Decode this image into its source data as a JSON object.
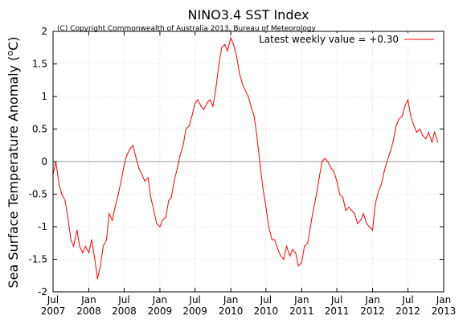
{
  "title": "NINO3.4 SST Index",
  "copyright": "(C) Copyright Commonwealth of Australia 2013, Bureau of Meteorology",
  "legend": {
    "label": "Latest weekly value = +0.30",
    "position": "top-right"
  },
  "ylabel": {
    "main": "Sea Surface Temperature Anomaly (",
    "sup": "o",
    "unit": "C)"
  },
  "colors": {
    "series": "#ff0000",
    "axis": "#000000",
    "grid": "#bdbdbd"
  },
  "chart_data": {
    "type": "line",
    "title": "NINO3.4 SST Index",
    "xlabel": "",
    "ylabel": "Sea Surface Temperature Anomaly (oC)",
    "ylim": [
      -2,
      2
    ],
    "yticks": [
      -2,
      -1.5,
      -1,
      -0.5,
      0,
      0.5,
      1,
      1.5,
      2
    ],
    "ytick_labels": [
      "-2",
      "-1.5",
      "-1",
      "-0.5",
      "0",
      "0.5",
      "1",
      "1.5",
      "2"
    ],
    "xlim": [
      "2007-07",
      "2013-01"
    ],
    "xticks": [
      {
        "pos": "2007-07",
        "line1": "Jul",
        "line2": "2007"
      },
      {
        "pos": "2008-01",
        "line1": "Jan",
        "line2": "2008"
      },
      {
        "pos": "2008-07",
        "line1": "Jul",
        "line2": "2008"
      },
      {
        "pos": "2009-01",
        "line1": "Jan",
        "line2": "2009"
      },
      {
        "pos": "2009-07",
        "line1": "Jul",
        "line2": "2009"
      },
      {
        "pos": "2010-01",
        "line1": "Jan",
        "line2": "2010"
      },
      {
        "pos": "2010-07",
        "line1": "Jul",
        "line2": "2010"
      },
      {
        "pos": "2011-01",
        "line1": "Jan",
        "line2": "2011"
      },
      {
        "pos": "2011-07",
        "line1": "Jul",
        "line2": "2011"
      },
      {
        "pos": "2012-01",
        "line1": "Jan",
        "line2": "2012"
      },
      {
        "pos": "2012-07",
        "line1": "Jul",
        "line2": "2012"
      },
      {
        "pos": "2013-01",
        "line1": "Jan",
        "line2": "2013"
      }
    ],
    "grid": true,
    "series": [
      {
        "name": "Latest weekly value = +0.30",
        "x": [
          "2007-07-01",
          "2007-07-15",
          "2007-08-01",
          "2007-08-15",
          "2007-09-01",
          "2007-09-15",
          "2007-10-01",
          "2007-10-15",
          "2007-11-01",
          "2007-11-15",
          "2007-12-01",
          "2007-12-15",
          "2008-01-01",
          "2008-01-15",
          "2008-02-01",
          "2008-02-15",
          "2008-03-01",
          "2008-03-15",
          "2008-04-01",
          "2008-04-15",
          "2008-05-01",
          "2008-05-15",
          "2008-06-01",
          "2008-06-15",
          "2008-07-01",
          "2008-07-15",
          "2008-08-01",
          "2008-08-15",
          "2008-09-01",
          "2008-09-15",
          "2008-10-01",
          "2008-10-15",
          "2008-11-01",
          "2008-11-15",
          "2008-12-01",
          "2008-12-15",
          "2009-01-01",
          "2009-01-15",
          "2009-02-01",
          "2009-02-15",
          "2009-03-01",
          "2009-03-15",
          "2009-04-01",
          "2009-04-15",
          "2009-05-01",
          "2009-05-15",
          "2009-06-01",
          "2009-06-15",
          "2009-07-01",
          "2009-07-15",
          "2009-08-01",
          "2009-08-15",
          "2009-09-01",
          "2009-09-15",
          "2009-10-01",
          "2009-10-15",
          "2009-11-01",
          "2009-11-15",
          "2009-12-01",
          "2009-12-15",
          "2010-01-01",
          "2010-01-15",
          "2010-02-01",
          "2010-02-15",
          "2010-03-01",
          "2010-03-15",
          "2010-04-01",
          "2010-04-15",
          "2010-05-01",
          "2010-05-15",
          "2010-06-01",
          "2010-06-15",
          "2010-07-01",
          "2010-07-15",
          "2010-08-01",
          "2010-08-15",
          "2010-09-01",
          "2010-09-15",
          "2010-10-01",
          "2010-10-15",
          "2010-11-01",
          "2010-11-15",
          "2010-12-01",
          "2010-12-15",
          "2011-01-01",
          "2011-01-15",
          "2011-02-01",
          "2011-02-15",
          "2011-03-01",
          "2011-03-15",
          "2011-04-01",
          "2011-04-15",
          "2011-05-01",
          "2011-05-15",
          "2011-06-01",
          "2011-06-15",
          "2011-07-01",
          "2011-07-15",
          "2011-08-01",
          "2011-08-15",
          "2011-09-01",
          "2011-09-15",
          "2011-10-01",
          "2011-10-15",
          "2011-11-01",
          "2011-11-15",
          "2011-12-01",
          "2011-12-15",
          "2012-01-01",
          "2012-01-15",
          "2012-02-01",
          "2012-02-15",
          "2012-03-01",
          "2012-03-15",
          "2012-04-01",
          "2012-04-15",
          "2012-05-01",
          "2012-05-15",
          "2012-06-01",
          "2012-06-15",
          "2012-07-01",
          "2012-07-15",
          "2012-08-01",
          "2012-08-15",
          "2012-09-01",
          "2012-09-15",
          "2012-10-01",
          "2012-10-15",
          "2012-11-01",
          "2012-11-15",
          "2012-12-01"
        ],
        "y": [
          -0.2,
          0.0,
          -0.35,
          -0.5,
          -0.6,
          -0.85,
          -1.2,
          -1.3,
          -1.05,
          -1.3,
          -1.4,
          -1.3,
          -1.4,
          -1.2,
          -1.5,
          -1.8,
          -1.6,
          -1.3,
          -1.2,
          -0.8,
          -0.9,
          -0.7,
          -0.5,
          -0.3,
          -0.05,
          0.1,
          0.2,
          0.25,
          0.05,
          -0.1,
          -0.2,
          -0.3,
          -0.25,
          -0.55,
          -0.75,
          -0.95,
          -1.0,
          -0.9,
          -0.85,
          -0.6,
          -0.55,
          -0.3,
          -0.1,
          0.1,
          0.25,
          0.5,
          0.55,
          0.7,
          0.9,
          0.95,
          0.85,
          0.8,
          0.9,
          0.95,
          0.85,
          1.1,
          1.5,
          1.75,
          1.8,
          1.7,
          1.9,
          1.8,
          1.6,
          1.35,
          1.2,
          1.1,
          1.0,
          0.85,
          0.7,
          0.4,
          -0.05,
          -0.4,
          -0.7,
          -1.0,
          -1.2,
          -1.2,
          -1.35,
          -1.45,
          -1.5,
          -1.3,
          -1.45,
          -1.35,
          -1.4,
          -1.6,
          -1.55,
          -1.3,
          -1.25,
          -1.0,
          -0.75,
          -0.55,
          -0.25,
          0.0,
          0.05,
          0.0,
          -0.1,
          -0.15,
          -0.3,
          -0.5,
          -0.55,
          -0.75,
          -0.7,
          -0.75,
          -0.8,
          -0.95,
          -0.9,
          -0.8,
          -0.95,
          -1.0,
          -1.05,
          -0.65,
          -0.45,
          -0.35,
          -0.15,
          0.0,
          0.15,
          0.3,
          0.55,
          0.65,
          0.7,
          0.85,
          0.95,
          0.7,
          0.55,
          0.45,
          0.5,
          0.4,
          0.35,
          0.45,
          0.3,
          0.45,
          0.3
        ]
      }
    ]
  }
}
